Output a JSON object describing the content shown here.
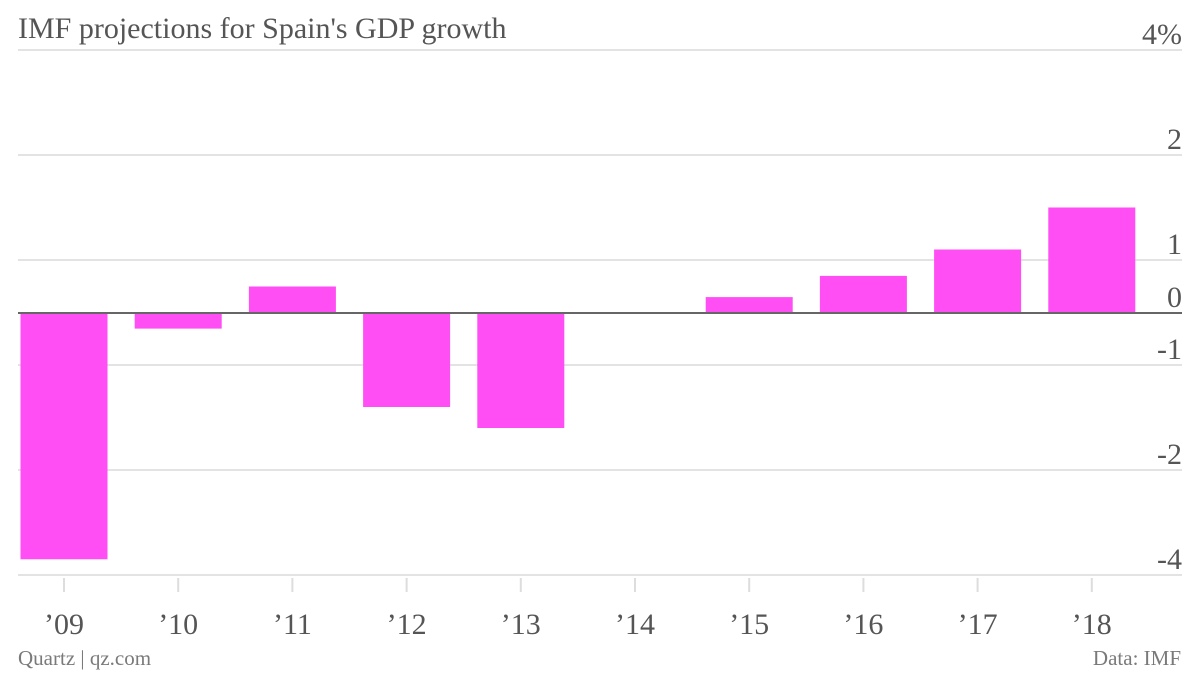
{
  "chart_data": {
    "type": "bar",
    "title": "IMF projections for Spain's GDP growth",
    "categories": [
      "’09",
      "’10",
      "’11",
      "’12",
      "’13",
      "’14",
      "’15",
      "’16",
      "’17",
      "’18"
    ],
    "values": [
      -3.7,
      -0.3,
      0.5,
      -1.4,
      -1.6,
      0.0,
      0.3,
      0.7,
      1.1,
      1.5
    ],
    "y_ticks": [
      {
        "value": 4,
        "label": "4%"
      },
      {
        "value": 2,
        "label": "2"
      },
      {
        "value": 1,
        "label": "1"
      },
      {
        "value": 0,
        "label": "0"
      },
      {
        "value": -1,
        "label": "-1"
      },
      {
        "value": -2,
        "label": "-2"
      },
      {
        "value": -4,
        "label": "-4"
      }
    ],
    "ylim": [
      -4,
      4
    ],
    "grid": true,
    "bar_color": "#ff4ef4",
    "xlabel": "",
    "ylabel": ""
  },
  "footer": {
    "source_left": "Quartz | qz.com",
    "source_right": "Data: IMF"
  }
}
